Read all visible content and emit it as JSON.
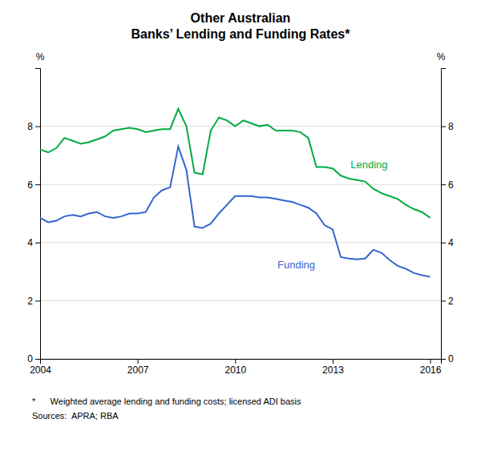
{
  "chart_data": {
    "type": "line",
    "title": [
      "Other Australian",
      "Banks’ Lending and Funding Rates*"
    ],
    "y_label": "%",
    "y2_label": "%",
    "notes": [
      "*      Weighted average lending and funding costs; licensed ADI basis",
      "Sources:  APRA; RBA"
    ],
    "x": [
      2004.0,
      2004.25,
      2004.5,
      2004.75,
      2005.0,
      2005.25,
      2005.5,
      2005.75,
      2006.0,
      2006.25,
      2006.5,
      2006.75,
      2007.0,
      2007.25,
      2007.5,
      2007.75,
      2008.0,
      2008.25,
      2008.5,
      2008.75,
      2009.0,
      2009.25,
      2009.5,
      2009.75,
      2010.0,
      2010.25,
      2010.5,
      2010.75,
      2011.0,
      2011.25,
      2011.5,
      2011.75,
      2012.0,
      2012.25,
      2012.5,
      2012.75,
      2013.0,
      2013.25,
      2013.5,
      2013.75,
      2014.0,
      2014.25,
      2014.5,
      2014.75,
      2015.0,
      2015.25,
      2015.5,
      2015.75,
      2016.0
    ],
    "series": [
      {
        "name": "Lending",
        "color": "#00aa44",
        "label_position": [
          2013.55,
          6.55
        ],
        "values": [
          7.2,
          7.1,
          7.25,
          7.6,
          7.5,
          7.4,
          7.45,
          7.55,
          7.65,
          7.85,
          7.9,
          7.95,
          7.9,
          7.8,
          7.85,
          7.9,
          7.9,
          8.6,
          8.0,
          6.4,
          6.35,
          7.85,
          8.3,
          8.2,
          8.0,
          8.2,
          8.1,
          8.0,
          8.05,
          7.85,
          7.85,
          7.85,
          7.8,
          7.6,
          6.6,
          6.6,
          6.55,
          6.3,
          6.2,
          6.15,
          6.1,
          5.85,
          5.7,
          5.6,
          5.5,
          5.3,
          5.15,
          5.05,
          4.85
        ]
      },
      {
        "name": "Funding",
        "color": "#3366cc",
        "label_position": [
          2011.3,
          3.1
        ],
        "values": [
          4.85,
          4.7,
          4.75,
          4.9,
          4.95,
          4.9,
          5.0,
          5.05,
          4.9,
          4.85,
          4.9,
          5.0,
          5.0,
          5.05,
          5.55,
          5.8,
          5.9,
          7.3,
          6.5,
          4.55,
          4.5,
          4.65,
          5.0,
          5.3,
          5.6,
          5.6,
          5.6,
          5.55,
          5.55,
          5.5,
          5.45,
          5.4,
          5.3,
          5.2,
          5.0,
          4.6,
          4.45,
          3.5,
          3.45,
          3.42,
          3.45,
          3.75,
          3.65,
          3.4,
          3.2,
          3.1,
          2.95,
          2.88,
          2.82
        ]
      }
    ],
    "xlim": [
      2004.0,
      2016.33
    ],
    "xticks": [
      2004,
      2007,
      2010,
      2013,
      2016
    ],
    "ylim": [
      0,
      10
    ],
    "yticks": [
      0,
      2,
      4,
      6,
      8
    ],
    "y2lim": [
      0,
      10
    ],
    "y2ticks": [
      0,
      2,
      4,
      6,
      8
    ],
    "grid": true
  }
}
